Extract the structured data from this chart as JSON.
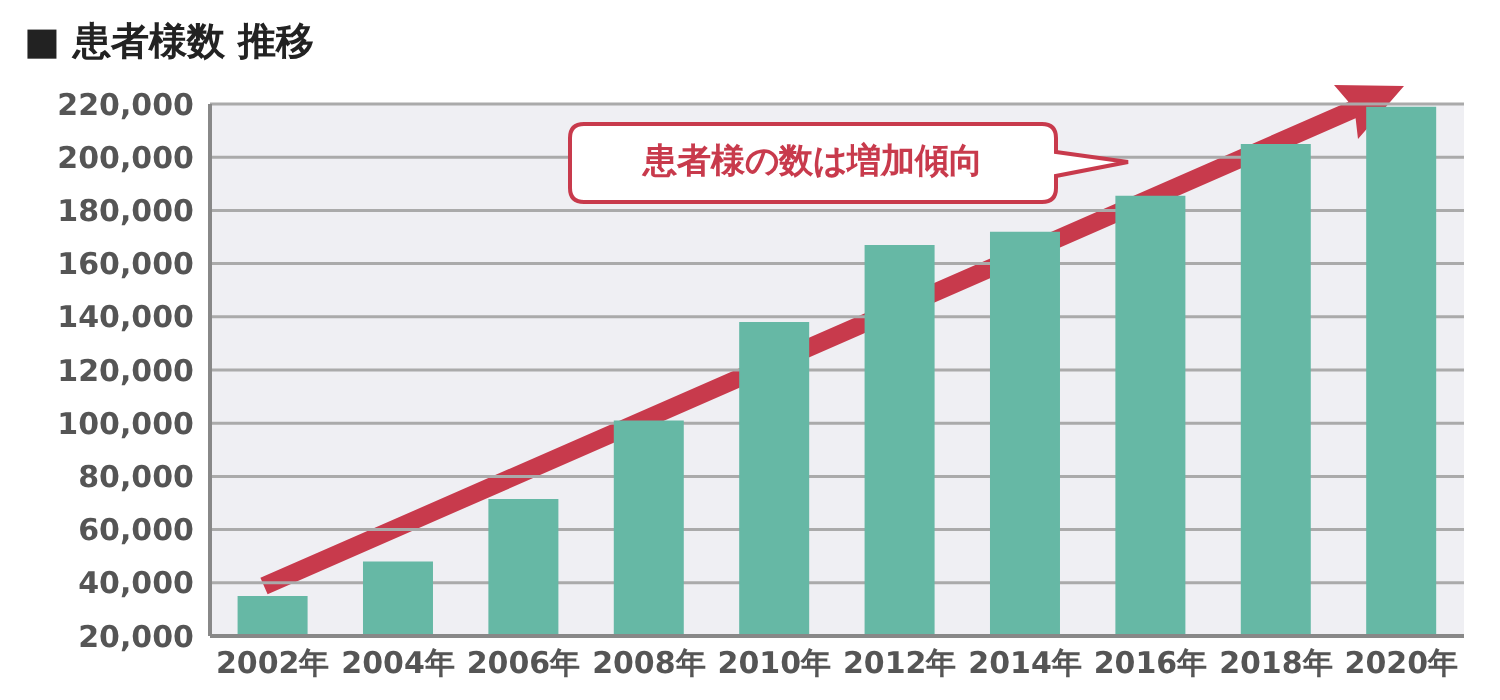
{
  "chart_data": {
    "type": "bar",
    "title": "■ 患者様数 推移",
    "categories": [
      "2002年",
      "2004年",
      "2006年",
      "2008年",
      "2010年",
      "2012年",
      "2014年",
      "2016年",
      "2018年",
      "2020年"
    ],
    "values": [
      35000,
      48000,
      71500,
      101000,
      138000,
      167000,
      172000,
      185500,
      205000,
      219000
    ],
    "color": "#66b8a5",
    "ylim": [
      20000,
      220000
    ],
    "yticks": [
      {
        "value": 20000,
        "label": "20,000"
      },
      {
        "value": 40000,
        "label": "40,000"
      },
      {
        "value": 60000,
        "label": "60,000"
      },
      {
        "value": 80000,
        "label": "80,000"
      },
      {
        "value": 100000,
        "label": "100,000"
      },
      {
        "value": 120000,
        "label": "120,000"
      },
      {
        "value": 140000,
        "label": "140,000"
      },
      {
        "value": 160000,
        "label": "160,000"
      },
      {
        "value": 180000,
        "label": "180,000"
      },
      {
        "value": 200000,
        "label": "200,000"
      },
      {
        "value": 220000,
        "label": "220,000"
      }
    ],
    "grid": "y",
    "annotations": [
      "患者様の数は増加傾向"
    ]
  }
}
